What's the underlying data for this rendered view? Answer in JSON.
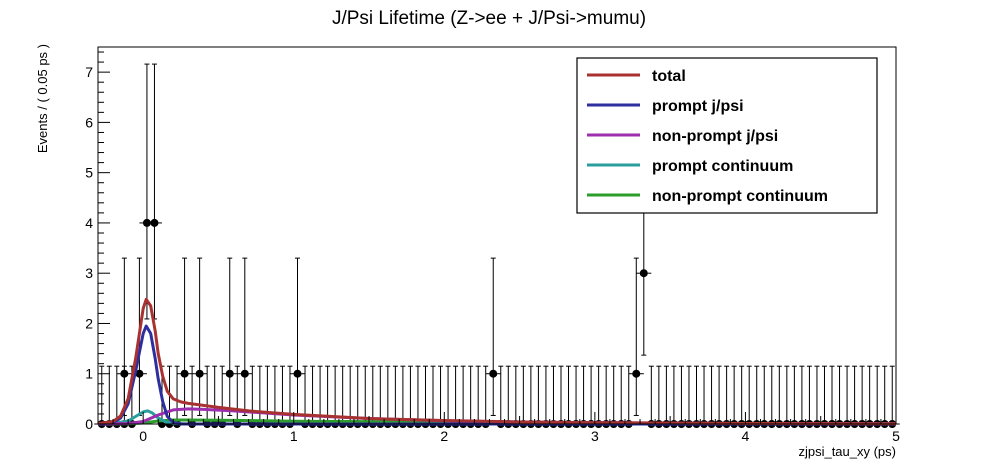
{
  "chart_data": {
    "type": "scatter",
    "title": "J/Psi Lifetime (Z->ee + J/Psi->mumu)",
    "xlabel": "zjpsi_tau_xy (ps)",
    "ylabel": "Events / ( 0.05 ps )",
    "xlim": [
      -0.3,
      5
    ],
    "ylim": [
      0,
      7.5
    ],
    "x_ticks": [
      0,
      1,
      2,
      3,
      4,
      5
    ],
    "y_ticks": [
      0,
      1,
      2,
      3,
      4,
      5,
      6,
      7
    ],
    "legend_position": "top-right",
    "bin_width": 0.05,
    "points": [
      {
        "x": -0.275,
        "y": 0,
        "err_low": 0,
        "err_high": 1.15
      },
      {
        "x": -0.225,
        "y": 0,
        "err_low": 0,
        "err_high": 1.15
      },
      {
        "x": -0.175,
        "y": 0,
        "err_low": 0,
        "err_high": 1.15
      },
      {
        "x": -0.125,
        "y": 0,
        "err_low": 0,
        "err_high": 1.15
      },
      {
        "x": -0.125,
        "y": 1,
        "err_low": 0.83,
        "err_high": 2.3
      },
      {
        "x": -0.025,
        "y": 1,
        "err_low": 0.83,
        "err_high": 2.3
      },
      {
        "x": 0.025,
        "y": 4,
        "err_low": 1.91,
        "err_high": 3.16
      },
      {
        "x": 0.075,
        "y": 4,
        "err_low": 1.91,
        "err_high": 3.16
      },
      {
        "x": 0.125,
        "y": 0,
        "err_low": 0,
        "err_high": 1.15
      },
      {
        "x": 0.175,
        "y": 0,
        "err_low": 0,
        "err_high": 1.15
      },
      {
        "x": 0.225,
        "y": 0,
        "err_low": 0,
        "err_high": 1.15
      },
      {
        "x": 0.275,
        "y": 1,
        "err_low": 0.83,
        "err_high": 2.3
      },
      {
        "x": 0.375,
        "y": 1,
        "err_low": 0.83,
        "err_high": 2.3
      },
      {
        "x": 0.575,
        "y": 1,
        "err_low": 0.83,
        "err_high": 2.3
      },
      {
        "x": 0.675,
        "y": 1,
        "err_low": 0.83,
        "err_high": 2.3
      },
      {
        "x": 1.025,
        "y": 1,
        "err_low": 0.83,
        "err_high": 2.3
      },
      {
        "x": 2.325,
        "y": 1,
        "err_low": 0.83,
        "err_high": 2.3
      },
      {
        "x": 3.275,
        "y": 1,
        "err_low": 0.83,
        "err_high": 2.3
      },
      {
        "x": 3.325,
        "y": 3,
        "err_low": 1.63,
        "err_high": 2.92
      }
    ],
    "series": [
      {
        "name": "total",
        "color": "#a83232",
        "x": [
          -0.3,
          -0.2,
          -0.15,
          -0.1,
          -0.05,
          0,
          0.02,
          0.05,
          0.08,
          0.1,
          0.13,
          0.16,
          0.2,
          0.25,
          0.3,
          0.4,
          0.5,
          0.7,
          1.0,
          1.5,
          2.0,
          2.5,
          3.0,
          4.0,
          5.0
        ],
        "y": [
          0.01,
          0.05,
          0.16,
          0.5,
          1.3,
          2.3,
          2.48,
          2.35,
          1.85,
          1.4,
          0.95,
          0.65,
          0.5,
          0.44,
          0.41,
          0.37,
          0.33,
          0.26,
          0.19,
          0.11,
          0.07,
          0.04,
          0.025,
          0.01,
          0.004
        ]
      },
      {
        "name": "prompt j/psi",
        "color": "#2e2e9e",
        "x": [
          -0.3,
          -0.2,
          -0.15,
          -0.1,
          -0.05,
          0,
          0.02,
          0.05,
          0.08,
          0.1,
          0.13,
          0.16,
          0.2,
          0.25,
          0.3,
          5.0
        ],
        "y": [
          0.0,
          0.03,
          0.12,
          0.4,
          1.05,
          1.8,
          1.95,
          1.8,
          1.3,
          0.9,
          0.45,
          0.15,
          0.03,
          0.0,
          0.0,
          0.0
        ]
      },
      {
        "name": "non-prompt j/psi",
        "color": "#9b2fae",
        "x": [
          -0.3,
          -0.1,
          0,
          0.1,
          0.2,
          0.3,
          0.4,
          0.6,
          0.8,
          1.0,
          1.5,
          2.0,
          2.5,
          3.0,
          4.0,
          5.0
        ],
        "y": [
          0.0,
          0.01,
          0.05,
          0.18,
          0.28,
          0.3,
          0.29,
          0.26,
          0.22,
          0.18,
          0.11,
          0.065,
          0.04,
          0.025,
          0.01,
          0.004
        ]
      },
      {
        "name": "prompt continuum",
        "color": "#2a9d9d",
        "x": [
          -0.3,
          -0.2,
          -0.1,
          -0.05,
          0,
          0.03,
          0.06,
          0.1,
          0.15,
          0.2,
          0.3,
          5.0
        ],
        "y": [
          0.0,
          0.01,
          0.06,
          0.15,
          0.24,
          0.26,
          0.22,
          0.12,
          0.04,
          0.01,
          0.0,
          0.0
        ]
      },
      {
        "name": "non-prompt continuum",
        "color": "#2a9d2a",
        "x": [
          -0.3,
          -0.1,
          0,
          0.1,
          0.2,
          0.3,
          0.5,
          0.8,
          1.0,
          2.0,
          3.0,
          4.0,
          5.0
        ],
        "y": [
          0.0,
          0.005,
          0.02,
          0.06,
          0.08,
          0.08,
          0.075,
          0.065,
          0.055,
          0.035,
          0.02,
          0.01,
          0.005
        ]
      }
    ]
  }
}
